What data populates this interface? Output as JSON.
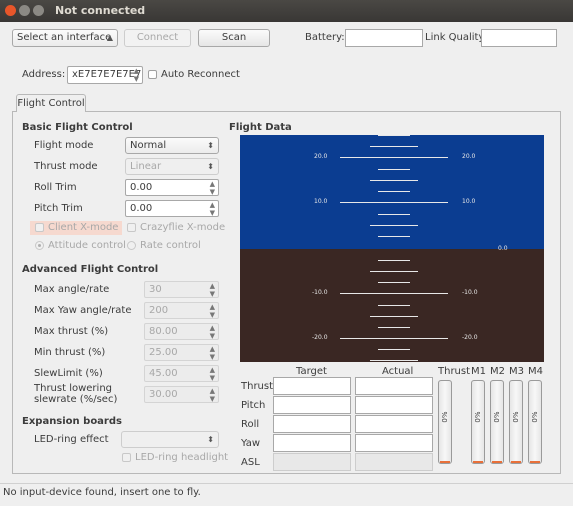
{
  "window": {
    "title": "Not connected"
  },
  "toolbar": {
    "interface_select": "Select an interface",
    "connect_label": "Connect",
    "scan_label": "Scan",
    "battery_label": "Battery:",
    "link_quality_label": "Link Quality:"
  },
  "address": {
    "label": "Address:",
    "value": "xE7E7E7E7E7",
    "auto_reconnect_label": "Auto Reconnect"
  },
  "tabs": [
    {
      "label": "Flight Control"
    }
  ],
  "basic": {
    "title": "Basic Flight Control",
    "flight_mode_label": "Flight mode",
    "flight_mode_value": "Normal",
    "thrust_mode_label": "Thrust mode",
    "thrust_mode_value": "Linear",
    "roll_trim_label": "Roll Trim",
    "roll_trim_value": "0.00",
    "pitch_trim_label": "Pitch Trim",
    "pitch_trim_value": "0.00",
    "client_xmode_label": "Client X-mode",
    "crazyflie_xmode_label": "Crazyflie X-mode",
    "attitude_control_label": "Attitude control",
    "rate_control_label": "Rate control"
  },
  "advanced": {
    "title": "Advanced Flight Control",
    "rows": [
      {
        "label": "Max angle/rate",
        "value": "30"
      },
      {
        "label": "Max Yaw angle/rate",
        "value": "200"
      },
      {
        "label": "Max thrust (%)",
        "value": "80.00"
      },
      {
        "label": "Min thrust (%)",
        "value": "25.00"
      },
      {
        "label": "SlewLimit (%)",
        "value": "45.00"
      },
      {
        "label": "Thrust lowering slewrate (%/sec)",
        "value": "30.00"
      }
    ]
  },
  "expansion": {
    "title": "Expansion boards",
    "led_ring_effect_label": "LED-ring effect",
    "led_ring_headlight_label": "LED-ring headlight"
  },
  "flight_data": {
    "title": "Flight Data",
    "horizon_labels": {
      "p20": "20.0",
      "p10": "10.0",
      "zero": "0.0",
      "m10": "-10.0",
      "m20": "-20.0"
    },
    "colors": {
      "sky": "#0b3d91",
      "ground": "#3a2723",
      "bar_fill": "#e8703a"
    },
    "target_header": "Target",
    "actual_header": "Actual",
    "row_labels": [
      "Thrust",
      "Pitch",
      "Roll",
      "Yaw",
      "ASL"
    ],
    "bars": [
      {
        "label": "Thrust",
        "value": "0%",
        "fill": 0
      },
      {
        "label": "M1",
        "value": "0%",
        "fill": 0
      },
      {
        "label": "M2",
        "value": "0%",
        "fill": 0
      },
      {
        "label": "M3",
        "value": "0%",
        "fill": 0
      },
      {
        "label": "M4",
        "value": "0%",
        "fill": 0
      }
    ]
  },
  "status": {
    "message": "No input-device found, insert one to fly."
  }
}
